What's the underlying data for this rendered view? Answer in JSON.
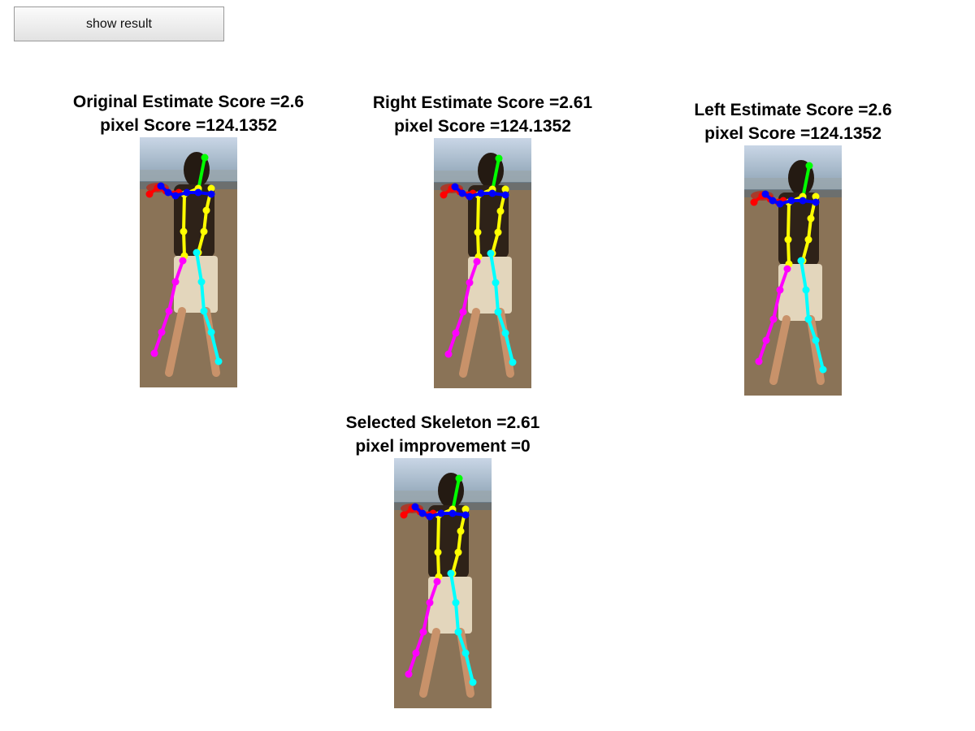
{
  "button": {
    "label": "show result"
  },
  "panels": [
    {
      "line1": "Original Estimate Score =2.6",
      "line2": "pixel Score =124.1352"
    },
    {
      "line1": "Right Estimate Score =2.61",
      "line2": "pixel Score =124.1352"
    },
    {
      "line1": "Left Estimate Score =2.6",
      "line2": "pixel Score =124.1352"
    },
    {
      "line1": "Selected Skeleton =2.61",
      "line2": "pixel improvement =0"
    }
  ],
  "skeleton_colors": {
    "head": "#00ff00",
    "right_arm": "#ff0000",
    "left_arm": "#0000ff",
    "torso": "#ffff00",
    "right_leg": "#ff00ff",
    "left_leg": "#00ffff"
  }
}
